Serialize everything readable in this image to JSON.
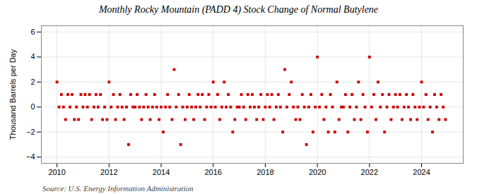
{
  "chart_data": {
    "type": "scatter",
    "title": "Monthly Rocky Mountain (PADD 4) Stock Change of Normal Butylene",
    "ylabel": "Thousand Barrels per Day",
    "source": "Source: U.S. Energy Information Administration",
    "color": "#cc0000",
    "marker": "square",
    "grid": true,
    "xlim": [
      2009.4,
      2025.6
    ],
    "xticks": [
      2010,
      2012,
      2014,
      2016,
      2018,
      2020,
      2022,
      2024
    ],
    "ylim": [
      -4.5,
      6.5
    ],
    "yticks": [
      -4,
      -2,
      0,
      2,
      4,
      6
    ],
    "x": [
      2010.0,
      2010.08,
      2010.17,
      2010.25,
      2010.33,
      2010.42,
      2010.5,
      2010.58,
      2010.67,
      2010.75,
      2010.83,
      2010.92,
      2011.0,
      2011.08,
      2011.17,
      2011.25,
      2011.33,
      2011.42,
      2011.5,
      2011.58,
      2011.67,
      2011.75,
      2011.83,
      2011.92,
      2012.0,
      2012.08,
      2012.17,
      2012.25,
      2012.33,
      2012.42,
      2012.5,
      2012.58,
      2012.67,
      2012.75,
      2012.83,
      2012.92,
      2013.0,
      2013.08,
      2013.17,
      2013.25,
      2013.33,
      2013.42,
      2013.5,
      2013.58,
      2013.67,
      2013.75,
      2013.83,
      2013.92,
      2014.0,
      2014.08,
      2014.17,
      2014.25,
      2014.33,
      2014.42,
      2014.5,
      2014.58,
      2014.67,
      2014.75,
      2014.83,
      2014.92,
      2015.0,
      2015.08,
      2015.17,
      2015.25,
      2015.33,
      2015.42,
      2015.5,
      2015.58,
      2015.67,
      2015.75,
      2015.83,
      2015.92,
      2016.0,
      2016.08,
      2016.17,
      2016.25,
      2016.33,
      2016.42,
      2016.5,
      2016.58,
      2016.67,
      2016.75,
      2016.83,
      2016.92,
      2017.0,
      2017.08,
      2017.17,
      2017.25,
      2017.33,
      2017.42,
      2017.5,
      2017.58,
      2017.67,
      2017.75,
      2017.83,
      2017.92,
      2018.0,
      2018.08,
      2018.17,
      2018.25,
      2018.33,
      2018.42,
      2018.5,
      2018.58,
      2018.67,
      2018.75,
      2018.83,
      2018.92,
      2019.0,
      2019.08,
      2019.17,
      2019.25,
      2019.33,
      2019.42,
      2019.5,
      2019.58,
      2019.67,
      2019.75,
      2019.83,
      2019.92,
      2020.0,
      2020.08,
      2020.17,
      2020.25,
      2020.33,
      2020.42,
      2020.5,
      2020.58,
      2020.67,
      2020.75,
      2020.83,
      2020.92,
      2021.0,
      2021.08,
      2021.17,
      2021.25,
      2021.33,
      2021.42,
      2021.5,
      2021.58,
      2021.67,
      2021.75,
      2021.83,
      2021.92,
      2022.0,
      2022.08,
      2022.17,
      2022.25,
      2022.33,
      2022.42,
      2022.5,
      2022.58,
      2022.67,
      2022.75,
      2022.83,
      2022.92,
      2023.0,
      2023.08,
      2023.17,
      2023.25,
      2023.33,
      2023.42,
      2023.5,
      2023.58,
      2023.67,
      2023.75,
      2023.83,
      2023.92,
      2024.0,
      2024.08,
      2024.17,
      2024.25,
      2024.33,
      2024.42,
      2024.5,
      2024.58,
      2024.67,
      2024.75,
      2024.83,
      2024.92
    ],
    "values": [
      2.0,
      0.0,
      1.0,
      0.0,
      -1.0,
      1.0,
      0.0,
      1.0,
      -1.0,
      0.0,
      -1.0,
      1.0,
      0.0,
      1.0,
      0.0,
      1.0,
      -1.0,
      0.0,
      1.0,
      0.0,
      1.0,
      -1.0,
      0.0,
      -1.0,
      2.0,
      0.0,
      1.0,
      -1.0,
      0.0,
      1.0,
      0.0,
      -1.0,
      0.0,
      -3.0,
      1.0,
      0.0,
      0.0,
      1.0,
      0.0,
      -1.0,
      0.0,
      1.0,
      0.0,
      -1.0,
      0.0,
      1.0,
      0.0,
      -1.0,
      0.0,
      -2.0,
      0.0,
      1.0,
      0.0,
      -1.0,
      3.0,
      0.0,
      1.0,
      -3.0,
      0.0,
      -1.0,
      0.0,
      1.0,
      0.0,
      -1.0,
      0.0,
      1.0,
      0.0,
      1.0,
      -1.0,
      0.0,
      1.0,
      0.0,
      2.0,
      0.0,
      1.0,
      -1.0,
      0.0,
      2.0,
      0.0,
      1.0,
      0.0,
      -2.0,
      -1.0,
      0.0,
      0.0,
      1.0,
      0.0,
      -1.0,
      1.0,
      0.0,
      1.0,
      0.0,
      -1.0,
      0.0,
      1.0,
      -1.0,
      0.0,
      1.0,
      0.0,
      1.0,
      -1.0,
      0.0,
      1.0,
      0.0,
      -2.0,
      3.0,
      0.0,
      1.0,
      2.0,
      0.0,
      -1.0,
      0.0,
      -1.0,
      1.0,
      0.0,
      -3.0,
      0.0,
      1.0,
      -2.0,
      0.0,
      4.0,
      0.0,
      1.0,
      -1.0,
      0.0,
      -2.0,
      1.0,
      0.0,
      -2.0,
      2.0,
      -1.0,
      0.0,
      0.0,
      1.0,
      -2.0,
      0.0,
      1.0,
      -1.0,
      0.0,
      2.0,
      -1.0,
      1.0,
      0.0,
      -2.0,
      4.0,
      0.0,
      1.0,
      -1.0,
      2.0,
      0.0,
      1.0,
      -2.0,
      0.0,
      1.0,
      -1.0,
      0.0,
      1.0,
      0.0,
      1.0,
      -1.0,
      0.0,
      1.0,
      0.0,
      -1.0,
      1.0,
      0.0,
      -1.0,
      0.0,
      2.0,
      0.0,
      1.0,
      -1.0,
      0.0,
      -2.0,
      1.0,
      0.0,
      -1.0,
      1.0,
      0.0,
      -1.0
    ]
  }
}
